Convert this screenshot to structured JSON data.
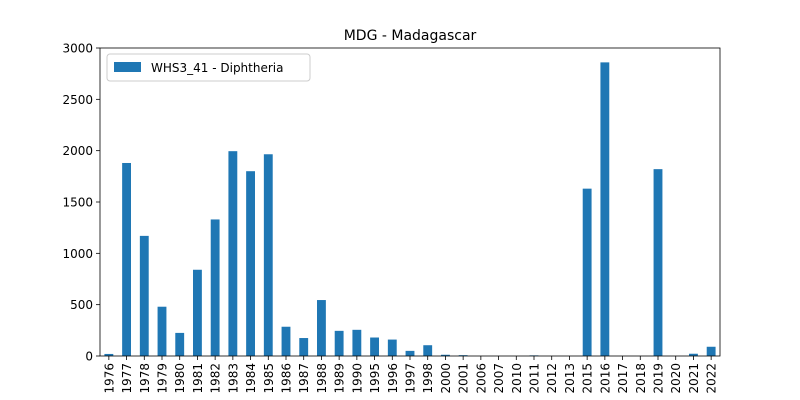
{
  "chart_data": {
    "type": "bar",
    "title": "MDG - Madagascar",
    "xlabel": "",
    "ylabel": "",
    "ylim": [
      0,
      3000
    ],
    "yticks": [
      0,
      500,
      1000,
      1500,
      2000,
      2500,
      3000
    ],
    "legend_position": "top-left",
    "grid": false,
    "bar_color": "#1f77b4",
    "categories": [
      "1976",
      "1977",
      "1978",
      "1979",
      "1980",
      "1981",
      "1982",
      "1983",
      "1984",
      "1985",
      "1986",
      "1987",
      "1988",
      "1989",
      "1990",
      "1995",
      "1996",
      "1997",
      "1998",
      "2000",
      "2001",
      "2006",
      "2007",
      "2010",
      "2011",
      "2012",
      "2013",
      "2015",
      "2016",
      "2017",
      "2018",
      "2019",
      "2020",
      "2021",
      "2022"
    ],
    "series": [
      {
        "name": "WHS3_41 - Diphtheria",
        "values": [
          20,
          1880,
          1170,
          480,
          225,
          840,
          1330,
          1995,
          1800,
          1965,
          285,
          175,
          545,
          245,
          255,
          180,
          160,
          50,
          105,
          12,
          8,
          0,
          0,
          0,
          6,
          0,
          0,
          1630,
          2860,
          0,
          0,
          1820,
          0,
          22,
          90
        ]
      }
    ]
  }
}
